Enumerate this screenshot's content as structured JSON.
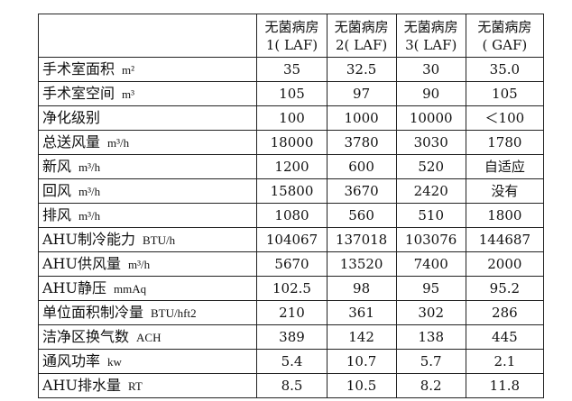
{
  "table": {
    "headers": [
      {
        "line1": "无菌病房",
        "line2": "1( LAF)"
      },
      {
        "line1": "无菌病房",
        "line2": "2( LAF)"
      },
      {
        "line1": "无菌病房",
        "line2": "3( LAF)"
      },
      {
        "line1": "无菌病房",
        "line2": "( GAF)"
      }
    ],
    "rows": [
      {
        "label": "手术室面积",
        "unit": "m²",
        "values": [
          "35",
          "32.5",
          "30",
          "35.0"
        ]
      },
      {
        "label": "手术室空间",
        "unit": "m³",
        "values": [
          "105",
          "97",
          "90",
          "105"
        ]
      },
      {
        "label": "净化级别",
        "unit": "",
        "values": [
          "100",
          "1000",
          "10000",
          "＜100"
        ]
      },
      {
        "label": "总送风量",
        "unit": "m³/h",
        "values": [
          "18000",
          "3780",
          "3030",
          "1780"
        ]
      },
      {
        "label": "新风",
        "unit": "m³/h",
        "values": [
          "1200",
          "600",
          "520",
          "自适应"
        ]
      },
      {
        "label": "回风",
        "unit": "m³/h",
        "values": [
          "15800",
          "3670",
          "2420",
          "没有"
        ]
      },
      {
        "label": "排风",
        "unit": "m³/h",
        "values": [
          "1080",
          "560",
          "510",
          "1800"
        ]
      },
      {
        "label": "AHU制冷能力",
        "unit": "BTU/h",
        "values": [
          "104067",
          "137018",
          "103076",
          "144687"
        ]
      },
      {
        "label": "AHU供风量",
        "unit": "m³/h",
        "values": [
          "5670",
          "13520",
          "7400",
          "2000"
        ]
      },
      {
        "label": "AHU静压",
        "unit": "mmAq",
        "values": [
          "102.5",
          "98",
          "95",
          "95.2"
        ]
      },
      {
        "label": "单位面积制冷量",
        "unit": "BTU/hft2",
        "values": [
          "210",
          "361",
          "302",
          "286"
        ]
      },
      {
        "label": "洁净区换气数",
        "unit": "ACH",
        "values": [
          "389",
          "142",
          "138",
          "445"
        ]
      },
      {
        "label": "通风功率",
        "unit": "kw",
        "values": [
          "5.4",
          "10.7",
          "5.7",
          "2.1"
        ]
      },
      {
        "label": "AHU排水量",
        "unit": "RT",
        "values": [
          "8.5",
          "10.5",
          "8.2",
          "11.8"
        ]
      }
    ]
  }
}
